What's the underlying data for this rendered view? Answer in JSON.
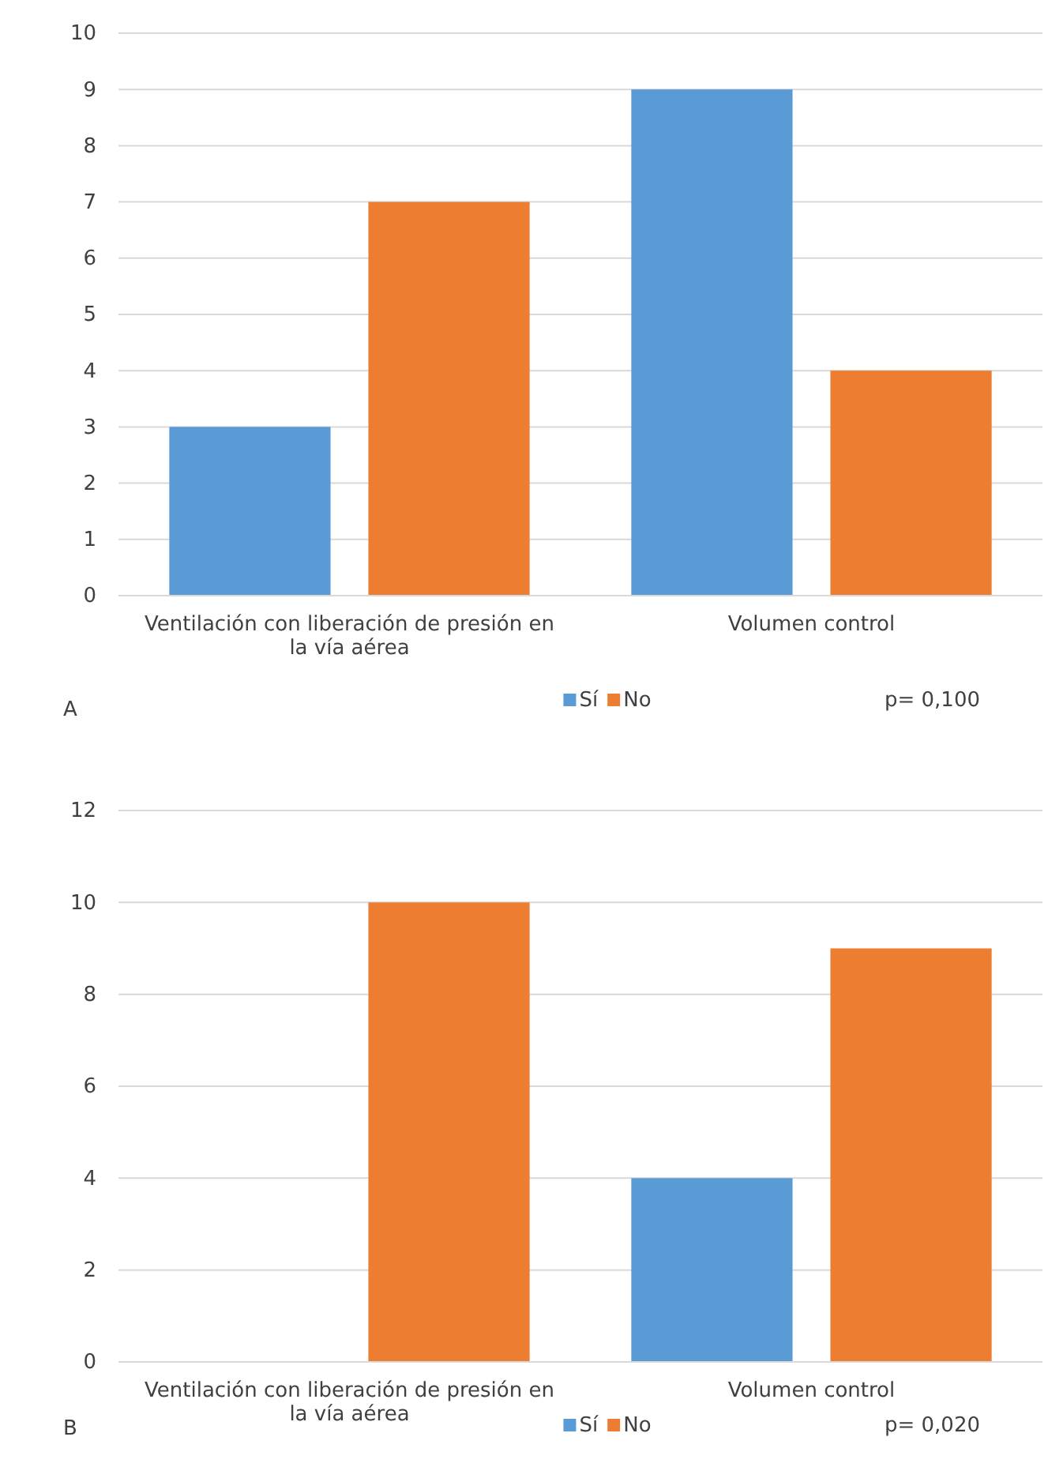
{
  "chart_data": [
    {
      "type": "bar",
      "categories": [
        "Ventilación con liberación de presión en la vía aérea",
        "Volumen control"
      ],
      "series": [
        {
          "name": "Sí",
          "color": "#5b9bd5",
          "values": [
            3,
            9
          ]
        },
        {
          "name": "No",
          "color": "#ed7d31",
          "values": [
            7,
            4
          ]
        }
      ],
      "ylim": [
        0,
        10
      ],
      "yticks": [
        0,
        1,
        2,
        3,
        4,
        5,
        6,
        7,
        8,
        9,
        10
      ],
      "grid": "y",
      "legend": "bottom",
      "annotations": [
        "A",
        "p= 0,100"
      ]
    },
    {
      "type": "bar",
      "categories": [
        "Ventilación con liberación de presión en la vía aérea",
        "Volumen control"
      ],
      "series": [
        {
          "name": "Sí",
          "color": "#5b9bd5",
          "values": [
            0,
            4
          ]
        },
        {
          "name": "No",
          "color": "#ed7d31",
          "values": [
            10,
            9
          ]
        }
      ],
      "ylim": [
        0,
        12
      ],
      "yticks": [
        0,
        2,
        4,
        6,
        8,
        10,
        12
      ],
      "grid": "y",
      "legend": "bottom",
      "annotations": [
        "B",
        "p= 0,020"
      ]
    }
  ]
}
